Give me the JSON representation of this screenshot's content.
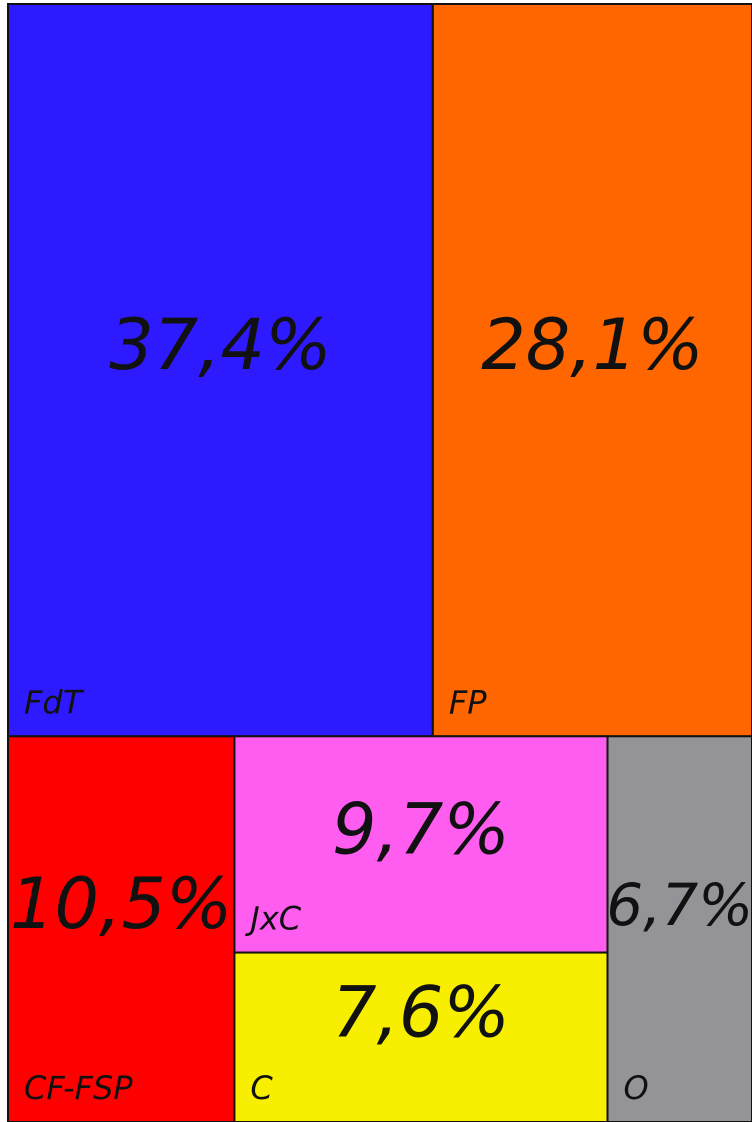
{
  "chart_data": {
    "type": "treemap",
    "categories": [
      "FdT",
      "FP",
      "CF-FSP",
      "JxC",
      "C",
      "O"
    ],
    "values": [
      37.4,
      28.1,
      10.5,
      9.7,
      7.6,
      6.7
    ],
    "value_labels": [
      "37,4%",
      "28,1%",
      "10,5%",
      "9,7%",
      "7,6%",
      "6,7%"
    ],
    "colors": [
      "#2e1aff",
      "#ff6600",
      "#ff0000",
      "#ff5cf0",
      "#f7ee00",
      "#949498"
    ]
  }
}
